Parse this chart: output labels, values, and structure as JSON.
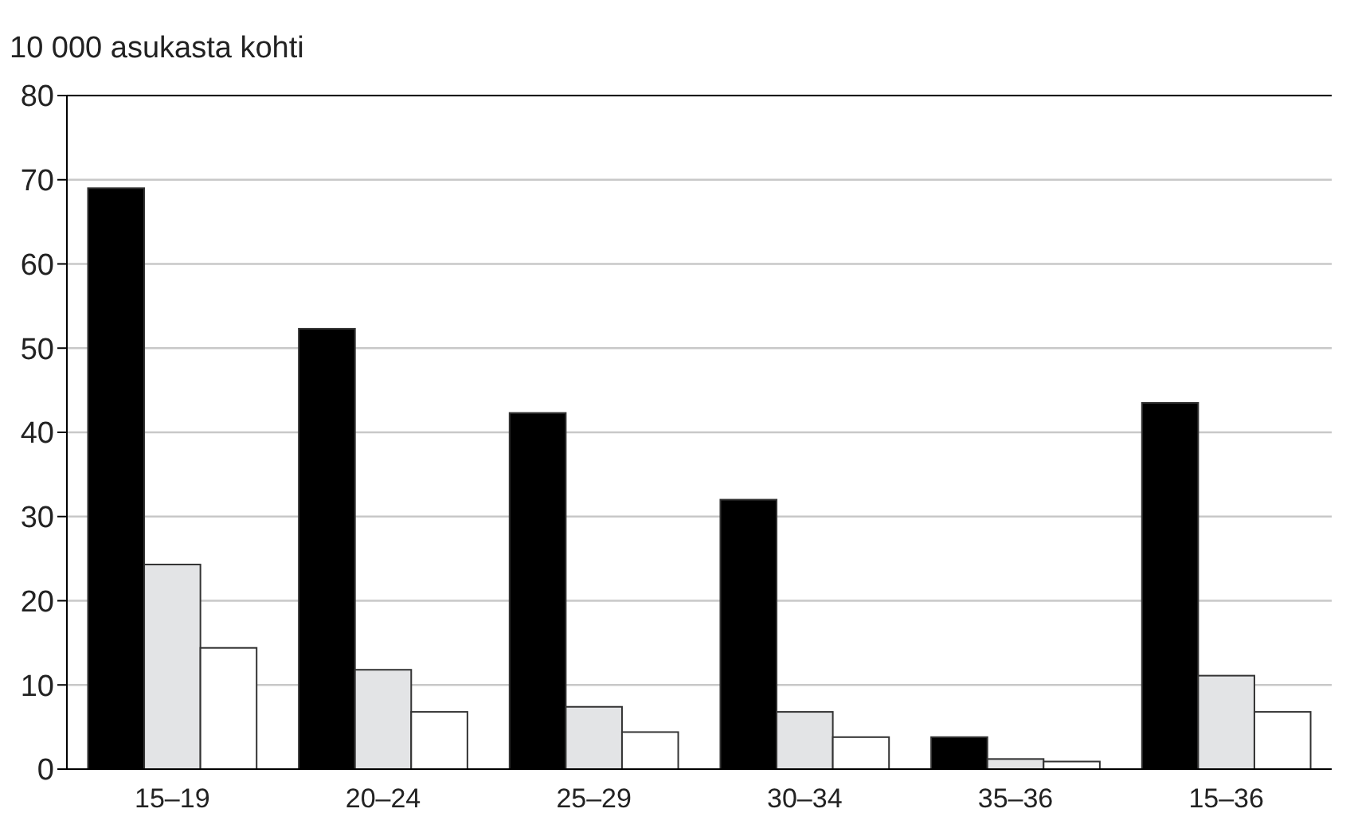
{
  "chart_data": {
    "type": "bar",
    "ylabel": "10 000 asukasta kohti",
    "categories": [
      "15–19",
      "20–24",
      "25–29",
      "30–34",
      "35–36",
      "15–36"
    ],
    "series": [
      {
        "color": "#000000",
        "values": [
          69.0,
          52.3,
          42.3,
          32.0,
          3.8,
          43.5
        ]
      },
      {
        "color": "#e3e4e6",
        "values": [
          24.3,
          11.8,
          7.4,
          6.8,
          1.2,
          11.1
        ]
      },
      {
        "color": "#ffffff",
        "values": [
          14.4,
          6.8,
          4.4,
          3.8,
          0.9,
          6.8
        ]
      }
    ],
    "ylim": [
      0,
      80
    ],
    "yticks": [
      0,
      10,
      20,
      30,
      40,
      50,
      60,
      70,
      80
    ],
    "grid": "y"
  }
}
